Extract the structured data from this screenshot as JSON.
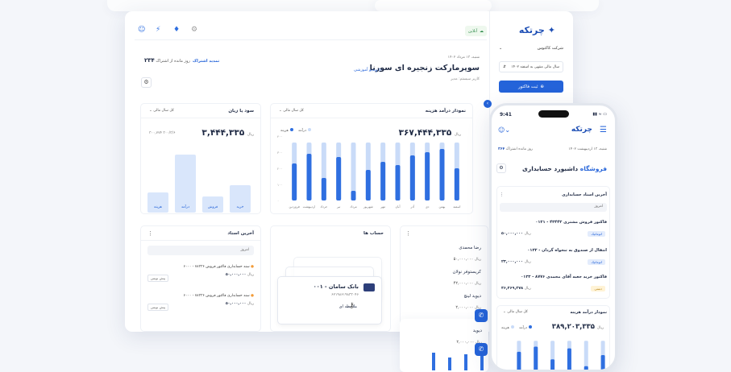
{
  "topbar": {
    "online": "آنلاین"
  },
  "sidebar": {
    "logo": "چرتکه",
    "company": "شرکت کاکتوس",
    "fiscal_year": "سال مالی منتهی به اسفند ۱۴۰۲",
    "invoice_button": "ثبت فاکتور"
  },
  "header": {
    "date": "شنبه، ۱۳ مرداد ۱۴۰۲",
    "title": "سوپرمارکت زنجیره ای سورنا",
    "user": "کاربر سیستم: مدیر",
    "video": "ویدیو آموزشی",
    "days_count": "۲۳۴",
    "days_text": "روز مانده از اشتراک",
    "renew": "تمدید اشتراک"
  },
  "profit": {
    "title": "سود یا زیان",
    "period": "کل سال مالی",
    "value": "۳,۴۴۴,۳۳۵",
    "unit": "ریال",
    "subvalue": "۳۰۰,۷۷۴ ۳۰۰/۳/۶",
    "bars": [
      {
        "label": "هزینه",
        "height": 30
      },
      {
        "label": "درآمد",
        "height": 85
      },
      {
        "label": "فروش",
        "height": 24
      },
      {
        "label": "خرید",
        "height": 40
      }
    ]
  },
  "income": {
    "title": "نمودار درآمد هزینه",
    "period": "کل سال مالی",
    "value": "۳۶۷,۴۴۴,۳۳۵",
    "unit": "ریال",
    "legend_income": "درآمد",
    "legend_expense": "هزینه",
    "yticks": [
      "۴۰۰",
      "۳۰۰",
      "۲۰۰",
      "۱۰۰",
      "۰"
    ]
  },
  "chart_data": {
    "type": "bar",
    "categories": [
      "فروردین",
      "اردیبهشت",
      "خرداد",
      "تیر",
      "مرداد",
      "شهریور",
      "مهر",
      "آبان",
      "آذر",
      "دی",
      "بهمن",
      "اسفند"
    ],
    "series": [
      {
        "name": "درآمد",
        "values": [
          360,
          360,
          360,
          360,
          360,
          360,
          360,
          360,
          360,
          360,
          360,
          360
        ]
      },
      {
        "name": "هزینه",
        "values": [
          230,
          290,
          140,
          270,
          60,
          190,
          240,
          220,
          280,
          300,
          320,
          200
        ]
      }
    ],
    "ylim": [
      0,
      400
    ]
  },
  "docs": {
    "title": "آخرین اسناد",
    "today": "امروز",
    "rows": [
      {
        "text": "۶۰۰۰ - سند حسابداری فاکتور فروش ۷۸۳۳۶",
        "amount": "۵۰,۰۰۰,۰۰۰",
        "unit": "ریال",
        "action": "پیش نویس"
      },
      {
        "text": "۶۰۰۰ - سند حسابداری فاکتور فروش ۷۸۳۳۶",
        "amount": "۵۰,۰۰۰,۰۰۰",
        "unit": "ریال",
        "action": "پیش نویس"
      }
    ]
  },
  "bank": {
    "title": "حساب ها",
    "card_name": "۰۰۱ - بانک سامان",
    "card_number": "۶۲۱۹۸۶۱۹۸۳۳۰۴۶",
    "card_sub": "ملاحظه ای"
  },
  "people": {
    "rows": [
      {
        "name": "رضا محمدی",
        "value": "۵۰,۰۰۰,۰۰۰",
        "unit": "ریال"
      },
      {
        "name": "کریستوفر نولان",
        "value": "۴۲,۰۰۰,۰۰۰",
        "unit": "ریال"
      },
      {
        "name": "دیوید لینچ",
        "value": "۲,۰۰۰,۰۰۰",
        "unit": "ریال"
      },
      {
        "name": "دیوید",
        "value": "۲,۰۰۰,۰۰۰",
        "unit": "ریال"
      }
    ]
  },
  "phone": {
    "time": "9:41",
    "logo": "چرتکه",
    "date": "شنبه، ۱۳ اردیبهشت ۱۴۰۲",
    "days": "۳۶۴",
    "days_text": "روز مانده اشتراک",
    "title_a": "داشبورد حسابداری",
    "title_b": "فروشگاه",
    "latest_docs": "آخرین اسناد حسابداری",
    "today": "امروز",
    "rows": [
      {
        "text": "۰۱۳۱ - فاکتور فروش مشتری ۴۳۴۴۳",
        "tag": "اتوماتیک",
        "amount": "۵۰,۰۰۰,۰۰۰",
        "unit": "ریال"
      },
      {
        "text": "۰۱۳۲ - انتقال از صندوق به تنخواه گردان",
        "tag": "اتوماتیک",
        "amount": "۲۳,۰۰۰,۰۰۰",
        "unit": "ریال"
      },
      {
        "text": "۰۱۳۳ - فاکتور خرید جعبه آقای محمدی ۸۷۷۶",
        "tag": "دستی",
        "amount": "۳۶,۴۶۹,۲۷۸",
        "unit": "ریال"
      }
    ],
    "chart_title": "نمودار درآمد هزینه",
    "chart_period": "کل سال مالی",
    "chart_value": "۳۸۹,۲۰۳,۳۳۵",
    "chart_unit": "ریال",
    "legend_income": "درآمد",
    "legend_expense": "هزینه"
  },
  "colors": {
    "accent": "#2463d9",
    "bar_light": "#c9dbf8",
    "bar_dark": "#2f6fe0"
  }
}
